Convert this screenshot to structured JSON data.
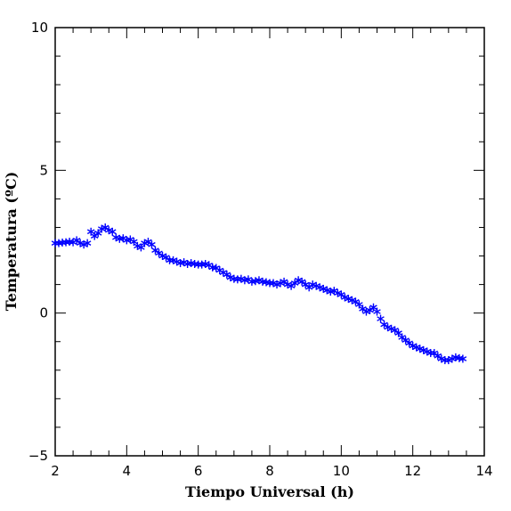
{
  "chart_data": {
    "type": "scatter",
    "title": "",
    "xlabel": "Tiempo Universal (h)",
    "ylabel": "Temperatura (ºC)",
    "xlim": [
      2,
      14
    ],
    "ylim": [
      -5,
      10
    ],
    "x_ticks": [
      "2",
      "4",
      "6",
      "8",
      "10",
      "12",
      "14"
    ],
    "y_ticks": [
      "−5",
      "0",
      "5",
      "10"
    ],
    "marker": "asterisk",
    "color": "#0000ff",
    "grid": false,
    "series": [
      {
        "name": "",
        "x": [
          2.0,
          2.1,
          2.2,
          2.3,
          2.4,
          2.5,
          2.6,
          2.7,
          2.8,
          2.9,
          3.0,
          3.1,
          3.2,
          3.3,
          3.4,
          3.5,
          3.6,
          3.7,
          3.8,
          3.9,
          4.0,
          4.1,
          4.2,
          4.3,
          4.4,
          4.5,
          4.6,
          4.7,
          4.8,
          4.9,
          5.0,
          5.1,
          5.2,
          5.3,
          5.4,
          5.5,
          5.6,
          5.7,
          5.8,
          5.9,
          6.0,
          6.1,
          6.2,
          6.3,
          6.4,
          6.5,
          6.6,
          6.7,
          6.8,
          6.9,
          7.0,
          7.1,
          7.2,
          7.3,
          7.4,
          7.5,
          7.6,
          7.7,
          7.8,
          7.9,
          8.0,
          8.1,
          8.2,
          8.3,
          8.4,
          8.5,
          8.6,
          8.7,
          8.8,
          8.9,
          9.0,
          9.1,
          9.2,
          9.3,
          9.4,
          9.5,
          9.6,
          9.7,
          9.8,
          9.9,
          10.0,
          10.1,
          10.2,
          10.3,
          10.4,
          10.5,
          10.6,
          10.7,
          10.8,
          10.9,
          11.0,
          11.1,
          11.2,
          11.3,
          11.4,
          11.5,
          11.6,
          11.7,
          11.8,
          11.9,
          12.0,
          12.1,
          12.2,
          12.3,
          12.4,
          12.5,
          12.6,
          12.7,
          12.8,
          12.9,
          13.0,
          13.1,
          13.2,
          13.3,
          13.4
        ],
        "y": [
          2.45,
          2.45,
          2.47,
          2.48,
          2.5,
          2.48,
          2.55,
          2.45,
          2.4,
          2.45,
          2.85,
          2.7,
          2.8,
          2.95,
          3.0,
          2.9,
          2.85,
          2.65,
          2.6,
          2.62,
          2.55,
          2.58,
          2.5,
          2.35,
          2.3,
          2.45,
          2.5,
          2.4,
          2.2,
          2.1,
          2.0,
          1.95,
          1.85,
          1.85,
          1.8,
          1.75,
          1.78,
          1.72,
          1.75,
          1.72,
          1.7,
          1.7,
          1.72,
          1.68,
          1.6,
          1.58,
          1.5,
          1.42,
          1.35,
          1.25,
          1.2,
          1.18,
          1.2,
          1.15,
          1.18,
          1.1,
          1.12,
          1.15,
          1.1,
          1.08,
          1.05,
          1.05,
          1.0,
          1.05,
          1.1,
          1.0,
          0.95,
          1.05,
          1.15,
          1.1,
          1.0,
          0.9,
          1.0,
          0.95,
          0.9,
          0.85,
          0.8,
          0.75,
          0.78,
          0.7,
          0.65,
          0.55,
          0.5,
          0.45,
          0.4,
          0.3,
          0.15,
          0.05,
          0.1,
          0.2,
          0.05,
          -0.2,
          -0.4,
          -0.5,
          -0.55,
          -0.6,
          -0.7,
          -0.85,
          -0.95,
          -1.05,
          -1.15,
          -1.2,
          -1.25,
          -1.3,
          -1.35,
          -1.4,
          -1.4,
          -1.5,
          -1.6,
          -1.65,
          -1.65,
          -1.6,
          -1.55,
          -1.58,
          -1.6
        ]
      }
    ]
  }
}
